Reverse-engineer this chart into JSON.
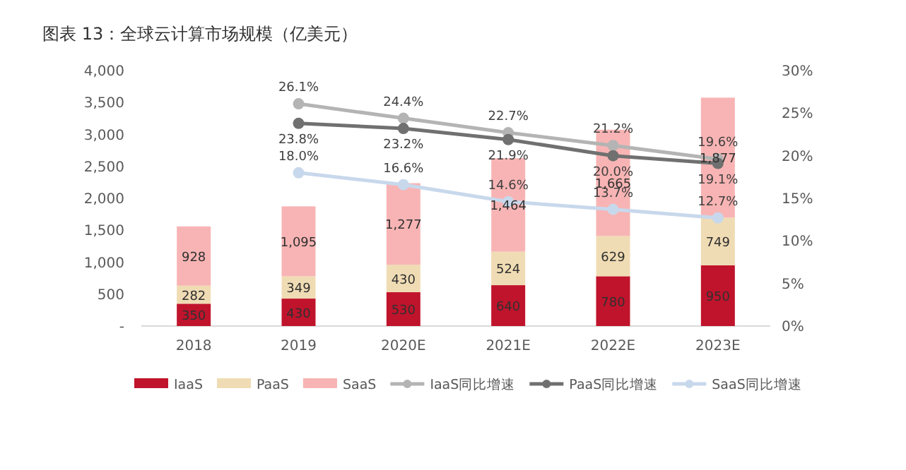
{
  "chart_data": {
    "type": "bar",
    "stacked": true,
    "title": "图表 13：全球云计算市场规模（亿美元）",
    "categories": [
      "2018",
      "2019",
      "2020E",
      "2021E",
      "2022E",
      "2023E"
    ],
    "series": [
      {
        "name": "IaaS",
        "color": "#c0142c",
        "values": [
          350,
          430,
          530,
          640,
          780,
          950
        ],
        "value_labels": [
          "350",
          "430",
          "530",
          "640",
          "780",
          "950"
        ]
      },
      {
        "name": "PaaS",
        "color": "#f0dcb4",
        "values": [
          282,
          349,
          430,
          524,
          629,
          749
        ],
        "value_labels": [
          "282",
          "349",
          "430",
          "524",
          "629",
          "749"
        ]
      },
      {
        "name": "SaaS",
        "color": "#f8b4b4",
        "values": [
          928,
          1095,
          1277,
          1464,
          1665,
          1877
        ],
        "value_labels": [
          "928",
          "1,095",
          "1,277",
          "1,464",
          "1,665",
          "1,877"
        ]
      },
      {
        "name": "IaaS同比增速",
        "type": "line",
        "axis": "y2",
        "color": "#b4b4b4",
        "values": [
          null,
          26.1,
          24.4,
          22.7,
          21.2,
          19.6
        ],
        "value_labels": [
          null,
          "26.1%",
          "24.4%",
          "22.7%",
          "21.2%",
          "19.6%"
        ]
      },
      {
        "name": "PaaS同比增速",
        "type": "line",
        "axis": "y2",
        "color": "#707070",
        "values": [
          null,
          23.8,
          23.2,
          21.9,
          20.0,
          19.1
        ],
        "value_labels": [
          null,
          "23.8%",
          "23.2%",
          "21.9%",
          "20.0%",
          "19.1%"
        ]
      },
      {
        "name": "SaaS同比增速",
        "type": "line",
        "axis": "y2",
        "color": "#c8d8ec",
        "values": [
          null,
          18.0,
          16.6,
          14.6,
          13.7,
          12.7
        ],
        "value_labels": [
          null,
          "18.0%",
          "16.6%",
          "14.6%",
          "13.7%",
          "12.7%"
        ]
      }
    ],
    "ylim": [
      0,
      4000
    ],
    "yticks": [
      {
        "value": 0,
        "label": "-"
      },
      {
        "value": 500,
        "label": "500"
      },
      {
        "value": 1000,
        "label": "1,000"
      },
      {
        "value": 1500,
        "label": "1,500"
      },
      {
        "value": 2000,
        "label": "2,000"
      },
      {
        "value": 2500,
        "label": "2,500"
      },
      {
        "value": 3000,
        "label": "3,000"
      },
      {
        "value": 3500,
        "label": "3,500"
      },
      {
        "value": 4000,
        "label": "4,000"
      }
    ],
    "y2lim": [
      0,
      30
    ],
    "y2ticks": [
      {
        "value": 0,
        "label": "0%"
      },
      {
        "value": 5,
        "label": "5%"
      },
      {
        "value": 10,
        "label": "10%"
      },
      {
        "value": 15,
        "label": "15%"
      },
      {
        "value": 20,
        "label": "20%"
      },
      {
        "value": 25,
        "label": "25%"
      },
      {
        "value": 30,
        "label": "30%"
      }
    ],
    "marker": "circle",
    "legend": "bottom"
  }
}
